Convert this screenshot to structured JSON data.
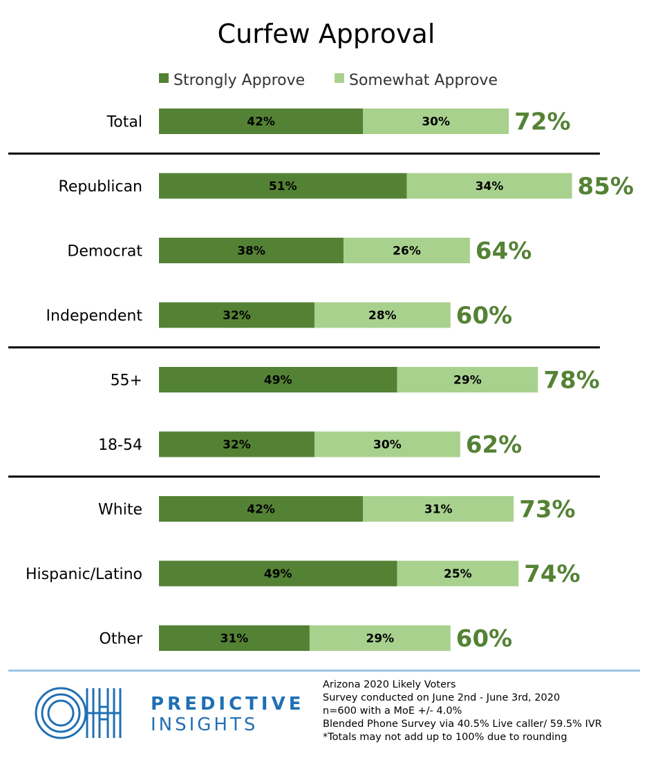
{
  "colors": {
    "strong": "#548235",
    "somewhat": "#a9d18e",
    "total_text": "#548235",
    "divider": "#000000",
    "footer_line": "#9dc3e6",
    "brand_blue": "#1f6fb5"
  },
  "chart_data": {
    "type": "bar",
    "orientation": "horizontal",
    "stacked": true,
    "title": "Curfew Approval",
    "categories": [
      "Total",
      "Republican",
      "Democrat",
      "Independent",
      "55+",
      "18-54",
      "White",
      "Hispanic/Latino",
      "Other"
    ],
    "series": [
      {
        "name": "Strongly Approve",
        "values": [
          42,
          51,
          38,
          32,
          49,
          32,
          42,
          49,
          31
        ],
        "labels": [
          "42%",
          "51%",
          "38%",
          "32%",
          "49%",
          "32%",
          "42%",
          "49%",
          "31%"
        ]
      },
      {
        "name": "Somewhat Approve",
        "values": [
          30,
          34,
          26,
          28,
          29,
          30,
          31,
          25,
          29
        ],
        "labels": [
          "30%",
          "34%",
          "26%",
          "28%",
          "29%",
          "30%",
          "31%",
          "25%",
          "29%"
        ]
      }
    ],
    "totals": [
      72,
      85,
      64,
      60,
      78,
      62,
      73,
      74,
      60
    ],
    "total_labels": [
      "72%",
      "85%",
      "64%",
      "60%",
      "78%",
      "62%",
      "73%",
      "74%",
      "60%"
    ],
    "group_dividers_after": [
      "Total",
      "Independent",
      "18-54"
    ],
    "legend_position": "top",
    "grid": false
  },
  "footer": {
    "brand_line1": "PREDICTIVE",
    "brand_line2": "INSIGHTS",
    "logo_icon": "oh-logo-icon",
    "notes": [
      "Arizona 2020 Likely Voters",
      "Survey conducted on June 2nd - June 3rd, 2020",
      "n=600 with a MoE +/- 4.0%",
      "Blended Phone Survey via 40.5% Live caller/ 59.5% IVR",
      "*Totals may not add up to 100% due to rounding"
    ]
  }
}
